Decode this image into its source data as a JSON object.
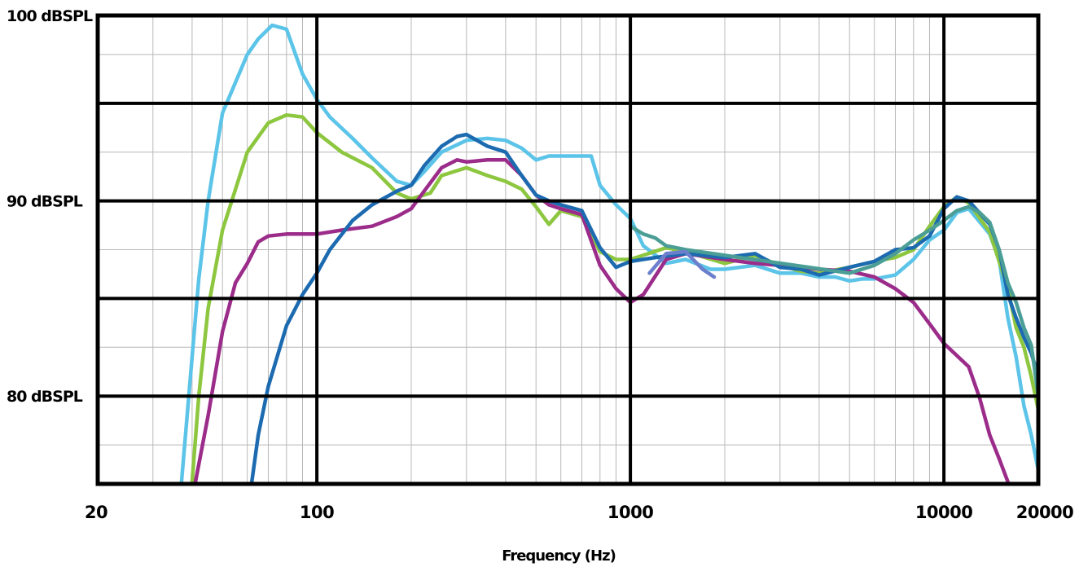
{
  "chart_data": {
    "type": "line",
    "xscale": "log",
    "xlim": [
      20,
      20000
    ],
    "ylim": [
      75.5,
      99.5
    ],
    "xlabel": "Frequency (Hz)",
    "ylabel": "",
    "grid": true,
    "xticks": [
      {
        "value": 20,
        "label": "20"
      },
      {
        "value": 100,
        "label": "100"
      },
      {
        "value": 1000,
        "label": "1000"
      },
      {
        "value": 10000,
        "label": "10000"
      },
      {
        "value": 20000,
        "label": "20000"
      }
    ],
    "yticks": [
      {
        "value": 80,
        "label": "80 dBSPL"
      },
      {
        "value": 90,
        "label": "90 dBSPL"
      },
      {
        "value": 100,
        "label": "100 dBSPL"
      }
    ],
    "series": [
      {
        "color": "#5bc4e8",
        "points": [
          [
            37,
            75.6
          ],
          [
            40,
            82
          ],
          [
            42,
            86
          ],
          [
            45,
            90
          ],
          [
            50,
            94.5
          ],
          [
            60,
            97.5
          ],
          [
            65,
            98.3
          ],
          [
            72,
            99
          ],
          [
            80,
            98.8
          ],
          [
            90,
            96.5
          ],
          [
            100,
            95.2
          ],
          [
            110,
            94.3
          ],
          [
            130,
            93.2
          ],
          [
            150,
            92.2
          ],
          [
            180,
            91
          ],
          [
            200,
            90.8
          ],
          [
            220,
            91.5
          ],
          [
            250,
            92.5
          ],
          [
            300,
            93.1
          ],
          [
            350,
            93.2
          ],
          [
            400,
            93.1
          ],
          [
            450,
            92.7
          ],
          [
            500,
            92.1
          ],
          [
            550,
            92.3
          ],
          [
            600,
            92.3
          ],
          [
            700,
            92.3
          ],
          [
            750,
            92.3
          ],
          [
            800,
            90.8
          ],
          [
            900,
            89.8
          ],
          [
            1000,
            89.1
          ],
          [
            1100,
            87.7
          ],
          [
            1300,
            86.8
          ],
          [
            1500,
            87
          ],
          [
            1800,
            86.5
          ],
          [
            2000,
            86.5
          ],
          [
            2500,
            86.7
          ],
          [
            3000,
            86.3
          ],
          [
            3500,
            86.3
          ],
          [
            4000,
            86.1
          ],
          [
            4500,
            86.1
          ],
          [
            5000,
            85.9
          ],
          [
            5500,
            86
          ],
          [
            6000,
            86
          ],
          [
            7000,
            86.2
          ],
          [
            8000,
            87
          ],
          [
            9000,
            88
          ],
          [
            10000,
            88.5
          ],
          [
            11000,
            89.4
          ],
          [
            12000,
            89.6
          ],
          [
            14000,
            88.3
          ],
          [
            15000,
            87
          ],
          [
            16000,
            84
          ],
          [
            17000,
            82
          ],
          [
            18000,
            79.5
          ],
          [
            19000,
            78
          ],
          [
            20000,
            76.2
          ]
        ]
      },
      {
        "color": "#8dc63f",
        "points": [
          [
            40,
            75.6
          ],
          [
            42,
            80
          ],
          [
            45,
            84.5
          ],
          [
            50,
            88.5
          ],
          [
            60,
            92.5
          ],
          [
            70,
            94
          ],
          [
            80,
            94.4
          ],
          [
            90,
            94.3
          ],
          [
            100,
            93.5
          ],
          [
            120,
            92.5
          ],
          [
            150,
            91.7
          ],
          [
            180,
            90.4
          ],
          [
            200,
            90.1
          ],
          [
            230,
            90.4
          ],
          [
            250,
            91.3
          ],
          [
            300,
            91.7
          ],
          [
            350,
            91.3
          ],
          [
            400,
            91
          ],
          [
            450,
            90.6
          ],
          [
            500,
            89.7
          ],
          [
            550,
            88.8
          ],
          [
            600,
            89.5
          ],
          [
            700,
            89.2
          ],
          [
            800,
            87.4
          ],
          [
            900,
            87
          ],
          [
            1000,
            87
          ],
          [
            1300,
            87.6
          ],
          [
            1500,
            87.4
          ],
          [
            2000,
            86.8
          ],
          [
            2500,
            87.2
          ],
          [
            3000,
            86.7
          ],
          [
            3500,
            86.4
          ],
          [
            4000,
            86.3
          ],
          [
            5000,
            86.6
          ],
          [
            6000,
            86.9
          ],
          [
            7000,
            87.1
          ],
          [
            8000,
            87.5
          ],
          [
            9000,
            88.7
          ],
          [
            10000,
            89.7
          ],
          [
            11000,
            90.2
          ],
          [
            12000,
            89.9
          ],
          [
            14000,
            88.4
          ],
          [
            16000,
            85.5
          ],
          [
            17000,
            83.5
          ],
          [
            18000,
            82.5
          ],
          [
            19000,
            81
          ],
          [
            20000,
            79.3
          ]
        ]
      },
      {
        "color": "#9b2c8a",
        "points": [
          [
            41,
            75.6
          ],
          [
            45,
            79
          ],
          [
            50,
            83.3
          ],
          [
            55,
            85.8
          ],
          [
            60,
            86.8
          ],
          [
            65,
            87.9
          ],
          [
            70,
            88.2
          ],
          [
            80,
            88.3
          ],
          [
            100,
            88.3
          ],
          [
            120,
            88.5
          ],
          [
            150,
            88.7
          ],
          [
            180,
            89.2
          ],
          [
            200,
            89.6
          ],
          [
            220,
            90.5
          ],
          [
            250,
            91.7
          ],
          [
            280,
            92.1
          ],
          [
            300,
            92
          ],
          [
            350,
            92.1
          ],
          [
            400,
            92.1
          ],
          [
            450,
            91.3
          ],
          [
            500,
            90.3
          ],
          [
            550,
            89.8
          ],
          [
            600,
            89.6
          ],
          [
            700,
            89.3
          ],
          [
            800,
            86.7
          ],
          [
            900,
            85.5
          ],
          [
            1000,
            84.8
          ],
          [
            1100,
            85.2
          ],
          [
            1300,
            87
          ],
          [
            1500,
            87.3
          ],
          [
            2000,
            87
          ],
          [
            2500,
            86.8
          ],
          [
            3000,
            86.7
          ],
          [
            4000,
            86.5
          ],
          [
            5000,
            86.4
          ],
          [
            6000,
            86.1
          ],
          [
            7000,
            85.5
          ],
          [
            8000,
            84.8
          ],
          [
            9000,
            83.7
          ],
          [
            10000,
            82.7
          ],
          [
            12000,
            81.5
          ],
          [
            13000,
            79.9
          ],
          [
            14000,
            78
          ],
          [
            15000,
            76.8
          ],
          [
            16000,
            75.6
          ]
        ]
      },
      {
        "color": "#1c6ab0",
        "points": [
          [
            62,
            75.6
          ],
          [
            65,
            78
          ],
          [
            70,
            80.5
          ],
          [
            80,
            83.6
          ],
          [
            90,
            85.2
          ],
          [
            100,
            86.3
          ],
          [
            110,
            87.5
          ],
          [
            130,
            89
          ],
          [
            150,
            89.8
          ],
          [
            180,
            90.5
          ],
          [
            200,
            90.8
          ],
          [
            220,
            91.8
          ],
          [
            250,
            92.8
          ],
          [
            280,
            93.3
          ],
          [
            300,
            93.4
          ],
          [
            350,
            92.8
          ],
          [
            400,
            92.5
          ],
          [
            450,
            91.3
          ],
          [
            500,
            90.3
          ],
          [
            550,
            90
          ],
          [
            600,
            89.8
          ],
          [
            700,
            89.5
          ],
          [
            800,
            87.6
          ],
          [
            900,
            86.6
          ],
          [
            1000,
            86.9
          ],
          [
            1200,
            87.1
          ],
          [
            1500,
            87.3
          ],
          [
            2000,
            87.1
          ],
          [
            2500,
            87.3
          ],
          [
            3000,
            86.6
          ],
          [
            3500,
            86.5
          ],
          [
            4000,
            86.2
          ],
          [
            5000,
            86.6
          ],
          [
            6000,
            86.9
          ],
          [
            7000,
            87.5
          ],
          [
            8000,
            87.6
          ],
          [
            9000,
            88.2
          ],
          [
            10000,
            89.6
          ],
          [
            11000,
            90.2
          ],
          [
            12000,
            90
          ],
          [
            14000,
            88.8
          ],
          [
            15000,
            87.5
          ],
          [
            16000,
            85.2
          ],
          [
            17000,
            84
          ],
          [
            18000,
            83
          ],
          [
            19000,
            82.2
          ],
          [
            20000,
            81
          ]
        ]
      },
      {
        "color": "#4b9e96",
        "points": [
          [
            1000,
            88.7
          ],
          [
            1100,
            88.3
          ],
          [
            1200,
            88.1
          ],
          [
            1300,
            87.7
          ],
          [
            1400,
            87.6
          ],
          [
            1500,
            87.5
          ],
          [
            5000,
            86.3
          ],
          [
            6000,
            86.7
          ],
          [
            7000,
            87.3
          ],
          [
            8000,
            88
          ],
          [
            9000,
            88.5
          ],
          [
            10000,
            89
          ],
          [
            11000,
            89.5
          ],
          [
            12000,
            89.7
          ],
          [
            13000,
            89.4
          ],
          [
            14000,
            88.9
          ],
          [
            15000,
            87.5
          ],
          [
            16000,
            85.8
          ],
          [
            17000,
            84.8
          ],
          [
            18000,
            83.5
          ],
          [
            19000,
            82.6
          ],
          [
            20000,
            80
          ]
        ]
      },
      {
        "color": "#6c7fcc",
        "points": [
          [
            1150,
            86.3
          ],
          [
            1300,
            87.3
          ],
          [
            1500,
            87.4
          ],
          [
            1700,
            86.5
          ],
          [
            1850,
            86.1
          ]
        ]
      }
    ]
  }
}
